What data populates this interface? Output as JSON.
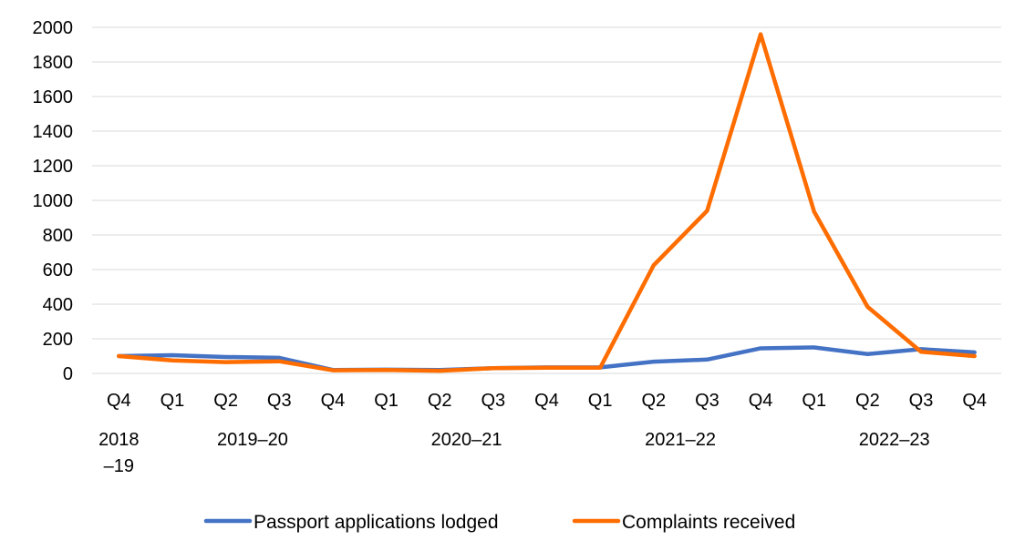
{
  "chart_data": {
    "type": "line",
    "title": "",
    "xlabel": "",
    "ylabel": "",
    "ylim": [
      0,
      2000
    ],
    "yticks": [
      "0",
      "200",
      "400",
      "600",
      "800",
      "1000",
      "1200",
      "1400",
      "1600",
      "1800",
      "2000"
    ],
    "categories": [
      "Q4",
      "Q1",
      "Q2",
      "Q3",
      "Q4",
      "Q1",
      "Q2",
      "Q3",
      "Q4",
      "Q1",
      "Q2",
      "Q3",
      "Q4",
      "Q1",
      "Q2",
      "Q3",
      "Q4"
    ],
    "year_groups": [
      {
        "label_lines": [
          "2018",
          "–19"
        ],
        "start": 0,
        "end": 0
      },
      {
        "label_lines": [
          "2019–20"
        ],
        "start": 1,
        "end": 4
      },
      {
        "label_lines": [
          "2020–21"
        ],
        "start": 5,
        "end": 8
      },
      {
        "label_lines": [
          "2021–22"
        ],
        "start": 9,
        "end": 12
      },
      {
        "label_lines": [
          "2022–23"
        ],
        "start": 13,
        "end": 16
      }
    ],
    "grid": true,
    "legend_position": "bottom",
    "series": [
      {
        "name": "Passport applications lodged",
        "color": "#4472c4",
        "values": [
          100,
          105,
          95,
          90,
          20,
          22,
          20,
          30,
          35,
          35,
          68,
          80,
          145,
          150,
          112,
          140,
          122
        ]
      },
      {
        "name": "Complaints received",
        "color": "#ff6d00",
        "values": [
          100,
          75,
          65,
          70,
          18,
          20,
          15,
          30,
          33,
          33,
          625,
          940,
          1960,
          935,
          385,
          125,
          100
        ]
      }
    ]
  }
}
